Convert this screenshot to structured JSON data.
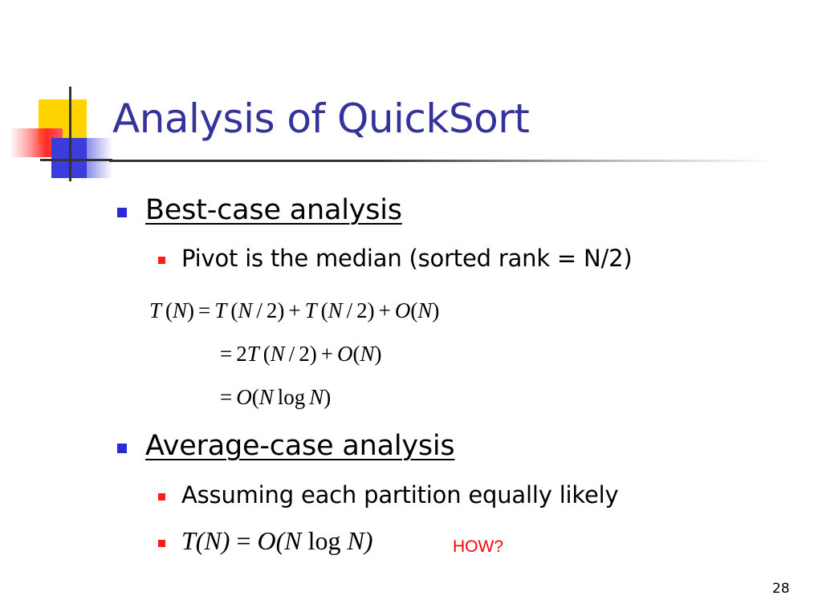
{
  "slide": {
    "title": "Analysis of QuickSort",
    "page_number": "28",
    "colors": {
      "title": "#333399",
      "bullet_level1": "#2b2bd6",
      "bullet_level2": "#ff1a1a",
      "accent_red": "#ff0000",
      "logo_yellow": "#ffd400",
      "logo_red": "#ff2a2a",
      "logo_blue": "#3c3cdc",
      "rule": "#333333"
    },
    "logo": {
      "icon": "four-square-crosshair-logo"
    }
  },
  "best_case": {
    "heading": "Best-case analysis",
    "point": "Pivot is the median (sorted rank = N/2)",
    "equations": [
      {
        "parts": [
          "T",
          "(",
          "N",
          ")",
          "=",
          "T",
          "(",
          "N",
          "/",
          "2)",
          "+",
          "T",
          "(",
          "N",
          "/",
          "2)",
          "+",
          "O",
          "(",
          "N",
          ")"
        ]
      },
      {
        "parts": [
          "=",
          "2",
          "T",
          "(",
          "N",
          "/",
          "2)",
          "+",
          "O",
          "(",
          "N",
          ")"
        ]
      },
      {
        "parts": [
          "=",
          "O",
          "(",
          "N",
          "log",
          "N",
          ")"
        ]
      }
    ]
  },
  "average_case": {
    "heading": "Average-case analysis",
    "point1": "Assuming each partition equally likely",
    "point2": {
      "lhs": "T(N)",
      "eq": "=",
      "rhs_a": "O(N",
      "log": "log",
      "rhs_b": "N)"
    },
    "note": "HOW?"
  }
}
